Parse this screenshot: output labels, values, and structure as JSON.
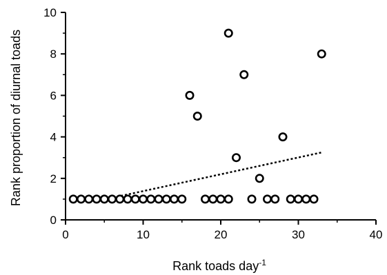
{
  "chart_data": {
    "type": "scatter",
    "title": "",
    "xlabel": "Rank toads day",
    "xlabel_superscript": "-1",
    "ylabel": "Rank proportion of diurnal toads",
    "xlim": [
      0,
      40
    ],
    "ylim": [
      0,
      10
    ],
    "xticks": [
      "0",
      "10",
      "20",
      "30",
      "40"
    ],
    "yticks": [
      "0",
      "2",
      "4",
      "6",
      "8",
      "10"
    ],
    "grid": false,
    "legend": "none",
    "marker": "open-circle",
    "points": [
      {
        "x": 1,
        "y": 1
      },
      {
        "x": 2,
        "y": 1
      },
      {
        "x": 3,
        "y": 1
      },
      {
        "x": 4,
        "y": 1
      },
      {
        "x": 5,
        "y": 1
      },
      {
        "x": 6,
        "y": 1
      },
      {
        "x": 7,
        "y": 1
      },
      {
        "x": 8,
        "y": 1
      },
      {
        "x": 9,
        "y": 1
      },
      {
        "x": 10,
        "y": 1
      },
      {
        "x": 11,
        "y": 1
      },
      {
        "x": 12,
        "y": 1
      },
      {
        "x": 13,
        "y": 1
      },
      {
        "x": 14,
        "y": 1
      },
      {
        "x": 15,
        "y": 1
      },
      {
        "x": 16,
        "y": 6
      },
      {
        "x": 17,
        "y": 5
      },
      {
        "x": 18,
        "y": 1
      },
      {
        "x": 19,
        "y": 1
      },
      {
        "x": 20,
        "y": 1
      },
      {
        "x": 21,
        "y": 9
      },
      {
        "x": 21,
        "y": 1
      },
      {
        "x": 22,
        "y": 3
      },
      {
        "x": 23,
        "y": 7
      },
      {
        "x": 24,
        "y": 1
      },
      {
        "x": 25,
        "y": 2
      },
      {
        "x": 26,
        "y": 1
      },
      {
        "x": 27,
        "y": 1
      },
      {
        "x": 28,
        "y": 4
      },
      {
        "x": 29,
        "y": 1
      },
      {
        "x": 30,
        "y": 1
      },
      {
        "x": 31,
        "y": 1
      },
      {
        "x": 32,
        "y": 1
      },
      {
        "x": 33,
        "y": 8
      }
    ],
    "trendline": {
      "style": "dotted",
      "start": {
        "x": 4,
        "y": 0.9
      },
      "end": {
        "x": 33,
        "y": 3.25
      }
    },
    "colors": {
      "marker": "#000000",
      "axis": "#000000",
      "trendline": "#000000"
    }
  }
}
